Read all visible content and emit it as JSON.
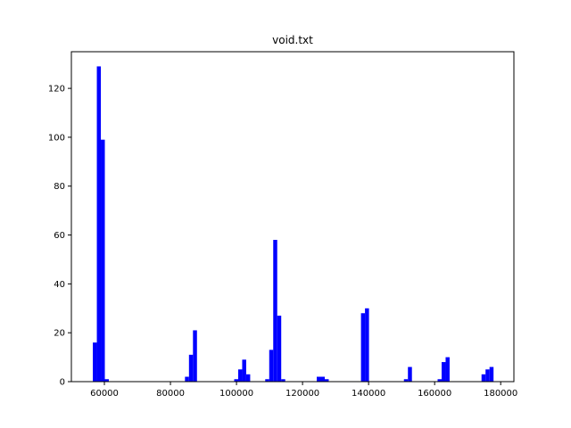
{
  "chart_data": {
    "type": "bar",
    "title": "void.txt",
    "xlabel": "",
    "ylabel": "",
    "xlim": [
      50000,
      184000
    ],
    "ylim": [
      0,
      135
    ],
    "x_ticks": [
      {
        "value": 60000,
        "label": "60000"
      },
      {
        "value": 80000,
        "label": "80000"
      },
      {
        "value": 100000,
        "label": "100000"
      },
      {
        "value": 120000,
        "label": "120000"
      },
      {
        "value": 140000,
        "label": "140000"
      },
      {
        "value": 160000,
        "label": "160000"
      },
      {
        "value": 180000,
        "label": "180000"
      }
    ],
    "y_ticks": [
      {
        "value": 0,
        "label": "0"
      },
      {
        "value": 20,
        "label": "20"
      },
      {
        "value": 40,
        "label": "40"
      },
      {
        "value": 60,
        "label": "60"
      },
      {
        "value": 80,
        "label": "80"
      },
      {
        "value": 100,
        "label": "100"
      },
      {
        "value": 120,
        "label": "120"
      }
    ],
    "bar_color": "#0000ff",
    "grid": false,
    "bin_width": 1211,
    "bins": [
      {
        "x": 56500,
        "count": 16
      },
      {
        "x": 57711,
        "count": 129
      },
      {
        "x": 58922,
        "count": 99
      },
      {
        "x": 60133,
        "count": 1
      },
      {
        "x": 84400,
        "count": 2
      },
      {
        "x": 85611,
        "count": 11
      },
      {
        "x": 86822,
        "count": 21
      },
      {
        "x": 99300,
        "count": 1
      },
      {
        "x": 100511,
        "count": 5
      },
      {
        "x": 101722,
        "count": 9
      },
      {
        "x": 102933,
        "count": 3
      },
      {
        "x": 108700,
        "count": 1
      },
      {
        "x": 109911,
        "count": 13
      },
      {
        "x": 111122,
        "count": 58
      },
      {
        "x": 112333,
        "count": 27
      },
      {
        "x": 113544,
        "count": 1
      },
      {
        "x": 124300,
        "count": 2
      },
      {
        "x": 125511,
        "count": 2
      },
      {
        "x": 126722,
        "count": 1
      },
      {
        "x": 137700,
        "count": 28
      },
      {
        "x": 138911,
        "count": 30
      },
      {
        "x": 150700,
        "count": 1
      },
      {
        "x": 151911,
        "count": 6
      },
      {
        "x": 160900,
        "count": 1
      },
      {
        "x": 162111,
        "count": 8
      },
      {
        "x": 163322,
        "count": 10
      },
      {
        "x": 174200,
        "count": 3
      },
      {
        "x": 175411,
        "count": 5
      },
      {
        "x": 176622,
        "count": 6
      }
    ]
  }
}
